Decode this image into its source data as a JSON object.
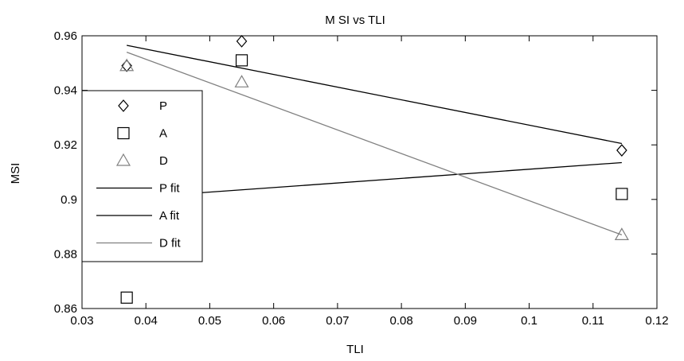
{
  "chart_data": {
    "type": "scatter",
    "title": "M SI vs TLI",
    "xlabel": "TLI",
    "ylabel": "MSI",
    "xlim": [
      0.03,
      0.12
    ],
    "ylim": [
      0.86,
      0.96
    ],
    "xticks": [
      0.03,
      0.04,
      0.05,
      0.06,
      0.07,
      0.08,
      0.09,
      0.1,
      0.11,
      0.12
    ],
    "xtick_labels": [
      "0.03",
      "0.04",
      "0.05",
      "0.06",
      "0.07",
      "0.08",
      "0.09",
      "0.1",
      "0.11",
      "0.12"
    ],
    "yticks": [
      0.86,
      0.88,
      0.9,
      0.92,
      0.94,
      0.96
    ],
    "ytick_labels": [
      "0.86",
      "0.88",
      "0.9",
      "0.92",
      "0.94",
      "0.96"
    ],
    "grid": false,
    "legend_position": "left",
    "series": [
      {
        "name": "P",
        "marker": "diamond",
        "color": "#000000",
        "x": [
          0.037,
          0.055,
          0.1145
        ],
        "y": [
          0.949,
          0.958,
          0.918
        ]
      },
      {
        "name": "A",
        "marker": "square",
        "color": "#000000",
        "x": [
          0.037,
          0.055,
          0.1145
        ],
        "y": [
          0.864,
          0.951,
          0.902
        ]
      },
      {
        "name": "D",
        "marker": "triangle",
        "color": "#808080",
        "x": [
          0.037,
          0.055,
          0.1145
        ],
        "y": [
          0.949,
          0.943,
          0.887
        ]
      }
    ],
    "fits": [
      {
        "name": "P fit",
        "color": "#000000",
        "x": [
          0.037,
          0.1145
        ],
        "y": [
          0.9565,
          0.9205
        ]
      },
      {
        "name": "A fit",
        "color": "#000000",
        "x": [
          0.037,
          0.1145
        ],
        "y": [
          0.9005,
          0.9135
        ]
      },
      {
        "name": "D fit",
        "color": "#808080",
        "x": [
          0.037,
          0.1145
        ],
        "y": [
          0.954,
          0.887
        ]
      }
    ],
    "legend_entries": [
      "P",
      "A",
      "D",
      "P fit",
      "A fit",
      "D fit"
    ]
  }
}
